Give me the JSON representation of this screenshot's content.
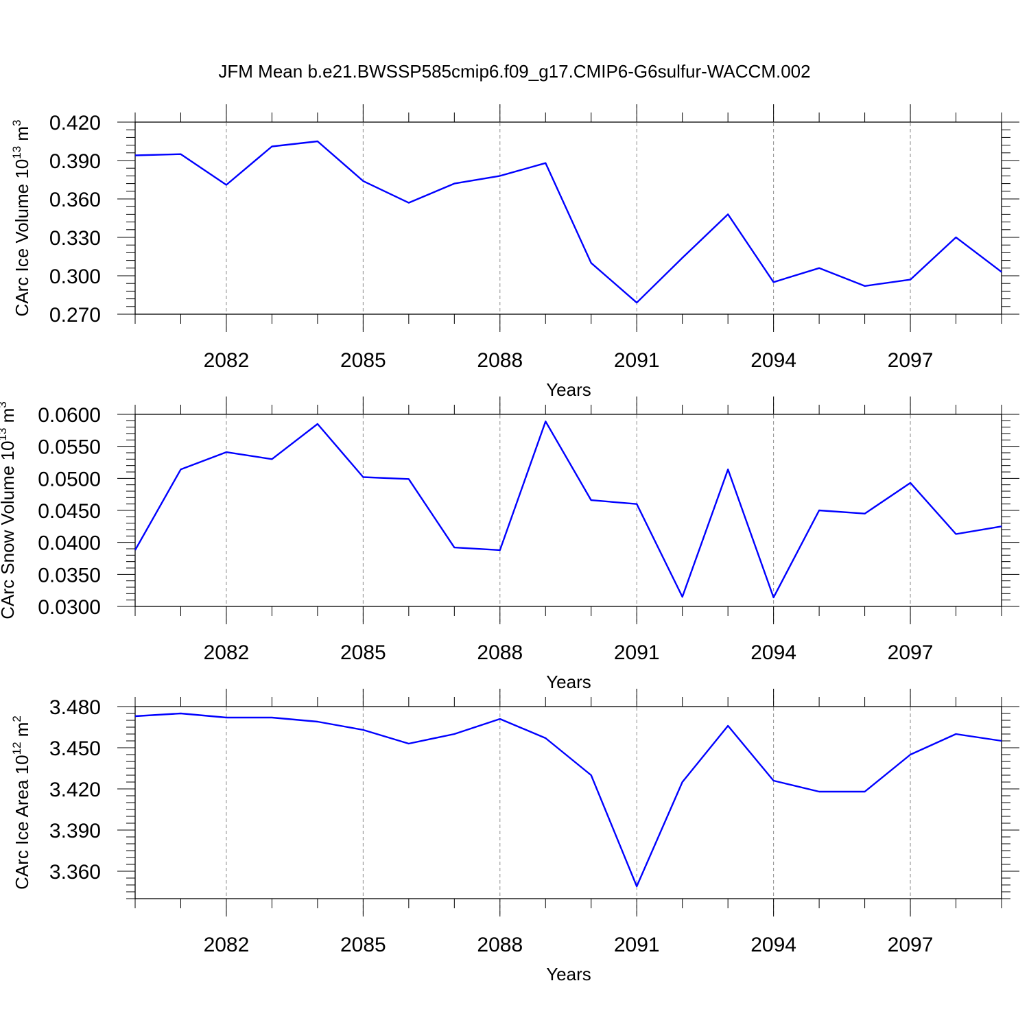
{
  "title": "JFM Mean b.e21.BWSSP585cmip6.f09_g17.CMIP6-G6sulfur-WACCM.002",
  "line_color": "#0000ff",
  "chart_data": [
    {
      "type": "line",
      "xlabel": "Years",
      "ylabel": "CArc Ice Volume 10",
      "ylabel_exp": "13",
      "ylabel_unit": " m",
      "ylabel_unit_exp": "3",
      "xlim": [
        2080,
        2099
      ],
      "ylim": [
        0.27,
        0.42
      ],
      "x_ticks": [
        "2082",
        "2085",
        "2088",
        "2091",
        "2094",
        "2097"
      ],
      "y_ticks": [
        "0.420",
        "0.390",
        "0.360",
        "0.330",
        "0.300",
        "0.270"
      ],
      "grid": "vertical dashed at major x ticks",
      "x": [
        2080,
        2081,
        2082,
        2083,
        2084,
        2085,
        2086,
        2087,
        2088,
        2089,
        2090,
        2091,
        2092,
        2093,
        2094,
        2095,
        2096,
        2097,
        2098,
        2099
      ],
      "values": [
        0.394,
        0.395,
        0.371,
        0.401,
        0.405,
        0.374,
        0.357,
        0.372,
        0.378,
        0.388,
        0.31,
        0.279,
        0.314,
        0.348,
        0.295,
        0.306,
        0.292,
        0.297,
        0.33,
        0.303
      ]
    },
    {
      "type": "line",
      "xlabel": "Years",
      "ylabel": "CArc Snow Volume 10",
      "ylabel_exp": "13",
      "ylabel_unit": " m",
      "ylabel_unit_exp": "3",
      "xlim": [
        2080,
        2099
      ],
      "ylim": [
        0.03,
        0.06
      ],
      "x_ticks": [
        "2082",
        "2085",
        "2088",
        "2091",
        "2094",
        "2097"
      ],
      "y_ticks": [
        "0.0600",
        "0.0550",
        "0.0500",
        "0.0450",
        "0.0400",
        "0.0350",
        "0.0300"
      ],
      "grid": "vertical dashed at major x ticks",
      "x": [
        2080,
        2081,
        2082,
        2083,
        2084,
        2085,
        2086,
        2087,
        2088,
        2089,
        2090,
        2091,
        2092,
        2093,
        2094,
        2095,
        2096,
        2097,
        2098,
        2099
      ],
      "values": [
        0.0388,
        0.0514,
        0.0541,
        0.053,
        0.0585,
        0.0502,
        0.0499,
        0.0392,
        0.0388,
        0.0589,
        0.0466,
        0.046,
        0.0315,
        0.0514,
        0.0314,
        0.045,
        0.0445,
        0.0493,
        0.0413,
        0.0425
      ]
    },
    {
      "type": "line",
      "xlabel": "Years",
      "ylabel": "CArc Ice Area 10",
      "ylabel_exp": "12",
      "ylabel_unit": " m",
      "ylabel_unit_exp": "2",
      "xlim": [
        2080,
        2099
      ],
      "ylim": [
        3.34,
        3.48
      ],
      "x_ticks": [
        "2082",
        "2085",
        "2088",
        "2091",
        "2094",
        "2097"
      ],
      "y_ticks": [
        "3.480",
        "3.450",
        "3.420",
        "3.390",
        "3.360"
      ],
      "grid": "vertical dashed at major x ticks",
      "x": [
        2080,
        2081,
        2082,
        2083,
        2084,
        2085,
        2086,
        2087,
        2088,
        2089,
        2090,
        2091,
        2092,
        2093,
        2094,
        2095,
        2096,
        2097,
        2098,
        2099
      ],
      "values": [
        3.473,
        3.475,
        3.472,
        3.472,
        3.469,
        3.463,
        3.453,
        3.46,
        3.471,
        3.457,
        3.43,
        3.349,
        3.425,
        3.466,
        3.426,
        3.418,
        3.418,
        3.445,
        3.46,
        3.455
      ]
    }
  ]
}
